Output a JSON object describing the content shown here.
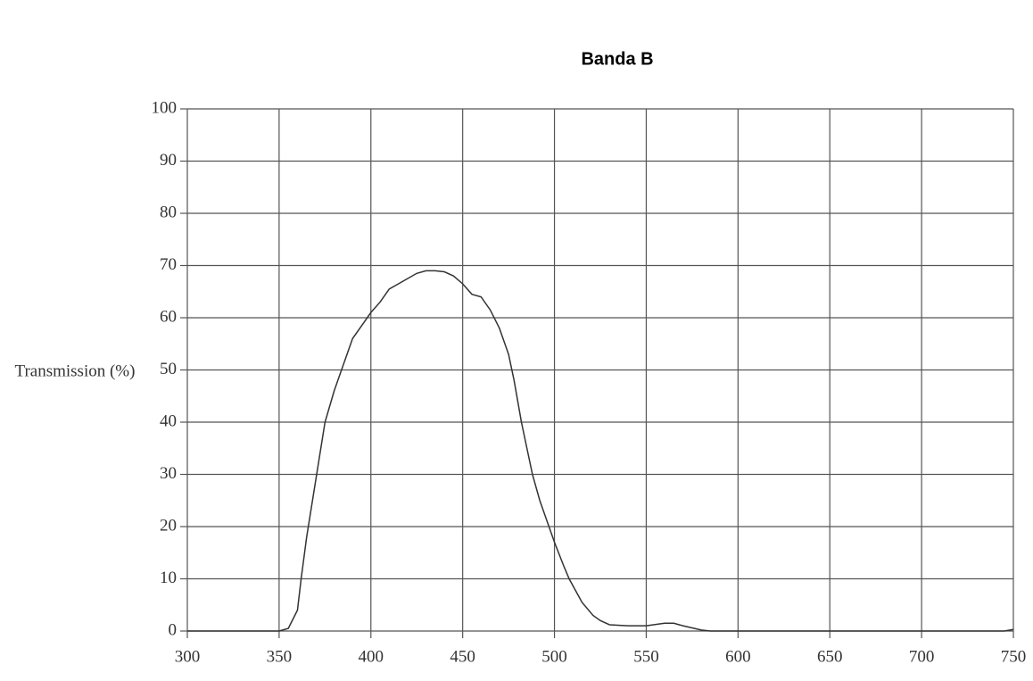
{
  "chart_data": {
    "type": "line",
    "title": "Banda B",
    "y_label": "Transmission (%)",
    "x": [
      300,
      350,
      355,
      360,
      362,
      365,
      370,
      375,
      380,
      385,
      390,
      395,
      400,
      405,
      410,
      415,
      420,
      425,
      430,
      435,
      440,
      445,
      450,
      455,
      460,
      465,
      470,
      475,
      478,
      482,
      485,
      488,
      492,
      497,
      500,
      505,
      508,
      515,
      521,
      525,
      530,
      540,
      550,
      560,
      565,
      570,
      580,
      585,
      700,
      745,
      750
    ],
    "series": [
      {
        "name": "Transmission",
        "color": "#333333",
        "values": [
          0,
          0,
          0.5,
          4,
          10,
          18,
          29,
          40,
          46,
          51,
          56,
          58.5,
          61,
          63,
          65.5,
          66.5,
          67.5,
          68.5,
          69,
          69,
          68.8,
          68,
          66.5,
          64.5,
          64,
          61.5,
          58,
          53,
          48,
          40,
          35,
          30,
          25,
          20,
          17,
          12.5,
          10,
          5.5,
          3,
          2,
          1.2,
          1,
          1,
          1.5,
          1.5,
          1,
          0.2,
          0,
          0,
          0,
          0.3
        ]
      }
    ],
    "xlim": [
      300,
      750
    ],
    "xticks": [
      300,
      350,
      400,
      450,
      500,
      550,
      600,
      650,
      700,
      750
    ],
    "ylim": [
      0,
      100
    ],
    "yticks": [
      0,
      10,
      20,
      30,
      40,
      50,
      60,
      70,
      80,
      90,
      100
    ],
    "grid": true
  }
}
